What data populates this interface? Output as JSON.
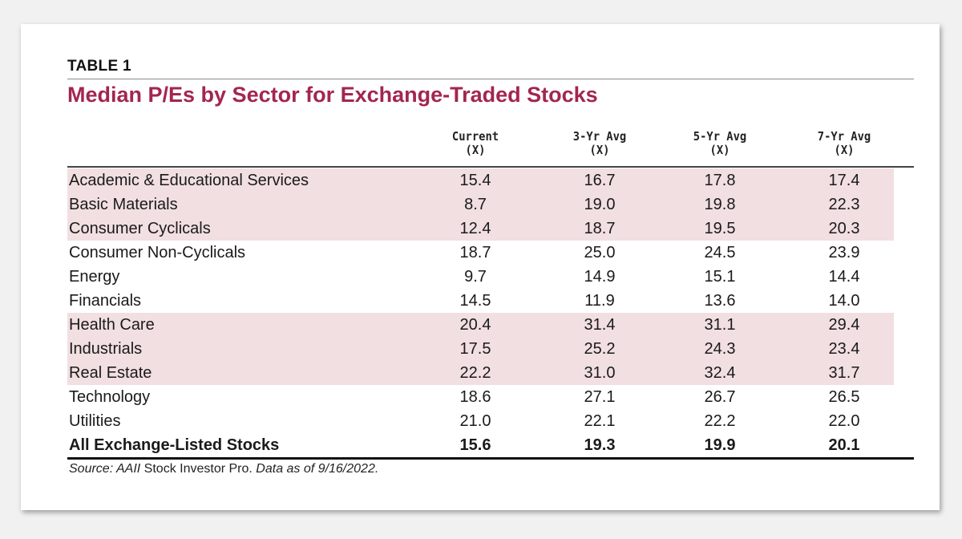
{
  "table_label": "TABLE 1",
  "title": "Median P/Es by Sector for Exchange-Traded Stocks",
  "source": {
    "prefix": "Source: AAII",
    "product": " Stock Investor Pro.",
    "suffix": " Data as of 9/16/2022."
  },
  "colors": {
    "title": "#a3264f",
    "shaded_row": "#f2dfe2"
  },
  "chart_data": {
    "type": "table",
    "title": "Median P/Es by Sector for Exchange-Traded Stocks",
    "columns": [
      {
        "line1": "Current",
        "line2": "(X)"
      },
      {
        "line1": "3-Yr Avg",
        "line2": "(X)"
      },
      {
        "line1": "5-Yr Avg",
        "line2": "(X)"
      },
      {
        "line1": "7-Yr Avg",
        "line2": "(X)"
      }
    ],
    "rows": [
      {
        "sector": "Academic & Educational Services",
        "values": [
          "15.4",
          "16.7",
          "17.8",
          "17.4"
        ],
        "shaded": true
      },
      {
        "sector": "Basic Materials",
        "values": [
          "8.7",
          "19.0",
          "19.8",
          "22.3"
        ],
        "shaded": true
      },
      {
        "sector": "Consumer Cyclicals",
        "values": [
          "12.4",
          "18.7",
          "19.5",
          "20.3"
        ],
        "shaded": true
      },
      {
        "sector": "Consumer Non-Cyclicals",
        "values": [
          "18.7",
          "25.0",
          "24.5",
          "23.9"
        ],
        "shaded": false
      },
      {
        "sector": "Energy",
        "values": [
          "9.7",
          "14.9",
          "15.1",
          "14.4"
        ],
        "shaded": false
      },
      {
        "sector": "Financials",
        "values": [
          "14.5",
          "11.9",
          "13.6",
          "14.0"
        ],
        "shaded": false
      },
      {
        "sector": "Health Care",
        "values": [
          "20.4",
          "31.4",
          "31.1",
          "29.4"
        ],
        "shaded": true
      },
      {
        "sector": "Industrials",
        "values": [
          "17.5",
          "25.2",
          "24.3",
          "23.4"
        ],
        "shaded": true
      },
      {
        "sector": "Real Estate",
        "values": [
          "22.2",
          "31.0",
          "32.4",
          "31.7"
        ],
        "shaded": true
      },
      {
        "sector": "Technology",
        "values": [
          "18.6",
          "27.1",
          "26.7",
          "26.5"
        ],
        "shaded": false
      },
      {
        "sector": "Utilities",
        "values": [
          "21.0",
          "22.1",
          "22.2",
          "22.0"
        ],
        "shaded": false
      }
    ],
    "total": {
      "sector": "All Exchange-Listed Stocks",
      "values": [
        "15.6",
        "19.3",
        "19.9",
        "20.1"
      ]
    }
  }
}
